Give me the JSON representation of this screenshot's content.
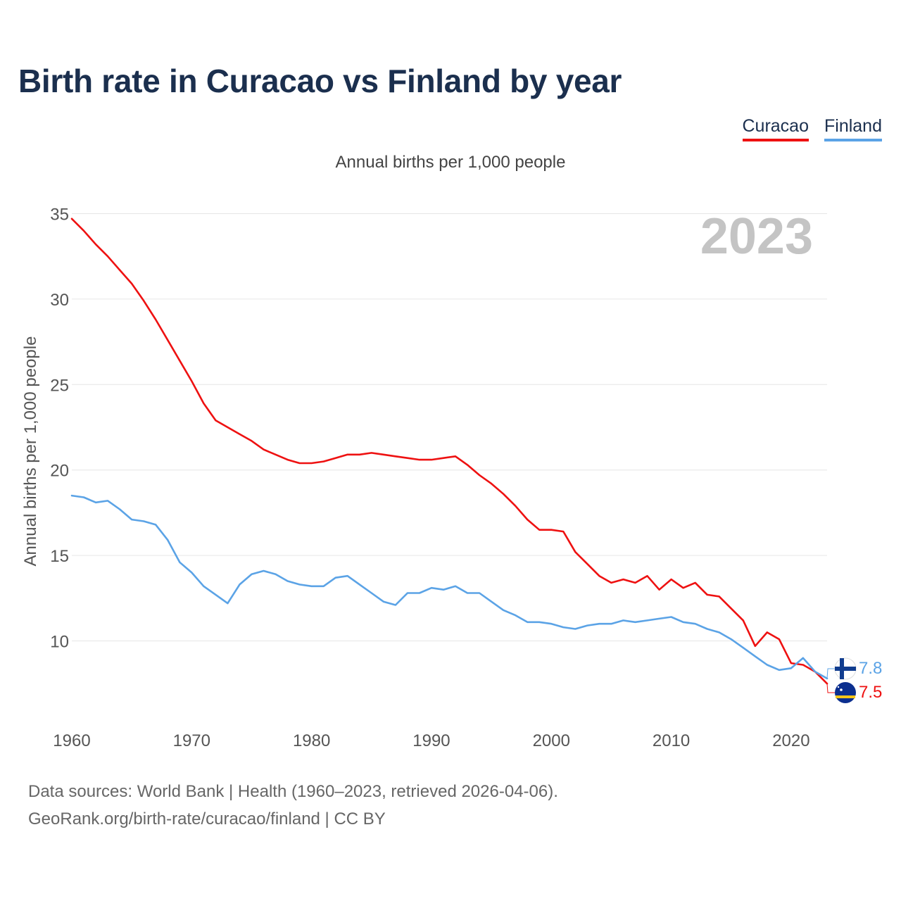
{
  "title": "Birth rate in Curacao vs Finland by year",
  "legend": [
    {
      "name": "Curacao",
      "color": "#ee1111"
    },
    {
      "name": "Finland",
      "color": "#5ba3e6"
    }
  ],
  "subtitle": "Annual births per 1,000 people",
  "footer": {
    "line1": "Data sources: World Bank | Health (1960–2023, retrieved 2026-04-06).",
    "line2": "GeoRank.org/birth-rate/curacao/finland | CC BY"
  },
  "chart_data": {
    "type": "line",
    "title": "Birth rate in Curacao vs Finland by year",
    "ylabel": "Annual births per 1,000 people",
    "xlabel": "",
    "year_label": "2023",
    "xlim": [
      1960,
      2023
    ],
    "ylim": [
      6,
      36
    ],
    "x_ticks": [
      1960,
      1970,
      1980,
      1990,
      2000,
      2010,
      2020
    ],
    "y_ticks": [
      10,
      15,
      20,
      25,
      30,
      35
    ],
    "grid": true,
    "x": [
      1960,
      1961,
      1962,
      1963,
      1964,
      1965,
      1966,
      1967,
      1968,
      1969,
      1970,
      1971,
      1972,
      1973,
      1974,
      1975,
      1976,
      1977,
      1978,
      1979,
      1980,
      1981,
      1982,
      1983,
      1984,
      1985,
      1986,
      1987,
      1988,
      1989,
      1990,
      1991,
      1992,
      1993,
      1994,
      1995,
      1996,
      1997,
      1998,
      1999,
      2000,
      2001,
      2002,
      2003,
      2004,
      2005,
      2006,
      2007,
      2008,
      2009,
      2010,
      2011,
      2012,
      2013,
      2014,
      2015,
      2016,
      2017,
      2018,
      2019,
      2020,
      2021,
      2022,
      2023
    ],
    "series": [
      {
        "name": "Curacao",
        "color": "#ee1111",
        "end_label": "7.5",
        "flag": "curacao-flag-icon",
        "values": [
          34.7,
          34.0,
          33.2,
          32.5,
          31.7,
          30.9,
          29.9,
          28.8,
          27.6,
          26.4,
          25.2,
          23.9,
          22.9,
          22.5,
          22.1,
          21.7,
          21.2,
          20.9,
          20.6,
          20.4,
          20.4,
          20.5,
          20.7,
          20.9,
          20.9,
          21.0,
          20.9,
          20.8,
          20.7,
          20.6,
          20.6,
          20.7,
          20.8,
          20.3,
          19.7,
          19.2,
          18.6,
          17.9,
          17.1,
          16.5,
          16.5,
          16.4,
          15.2,
          14.5,
          13.8,
          13.4,
          13.6,
          13.4,
          13.8,
          13.0,
          13.6,
          13.1,
          13.4,
          12.7,
          12.6,
          11.9,
          11.2,
          9.7,
          10.5,
          10.1,
          8.7,
          8.6,
          8.2,
          7.5
        ]
      },
      {
        "name": "Finland",
        "color": "#5ba3e6",
        "end_label": "7.8",
        "flag": "finland-flag-icon",
        "values": [
          18.5,
          18.4,
          18.1,
          18.2,
          17.7,
          17.1,
          17.0,
          16.8,
          15.9,
          14.6,
          14.0,
          13.2,
          12.7,
          12.2,
          13.3,
          13.9,
          14.1,
          13.9,
          13.5,
          13.3,
          13.2,
          13.2,
          13.7,
          13.8,
          13.3,
          12.8,
          12.3,
          12.1,
          12.8,
          12.8,
          13.1,
          13.0,
          13.2,
          12.8,
          12.8,
          12.3,
          11.8,
          11.5,
          11.1,
          11.1,
          11.0,
          10.8,
          10.7,
          10.9,
          11.0,
          11.0,
          11.2,
          11.1,
          11.2,
          11.3,
          11.4,
          11.1,
          11.0,
          10.7,
          10.5,
          10.1,
          9.6,
          9.1,
          8.6,
          8.3,
          8.4,
          9.0,
          8.2,
          7.8
        ]
      }
    ]
  }
}
